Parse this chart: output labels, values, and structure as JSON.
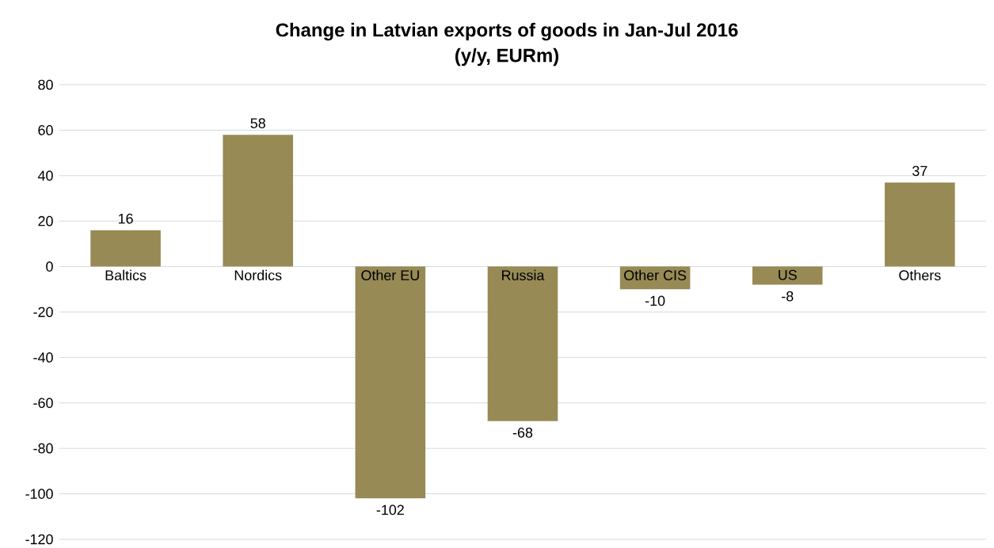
{
  "chart_data": {
    "type": "bar",
    "title": "Change in Latvian exports of goods in Jan-Jul 2016",
    "subtitle": "(y/y, EURm)",
    "categories": [
      "Baltics",
      "Nordics",
      "Other EU",
      "Russia",
      "Other CIS",
      "US",
      "Others"
    ],
    "values": [
      16,
      58,
      -102,
      -68,
      -10,
      -8,
      37
    ],
    "color": "#978a55",
    "ylim": [
      -120,
      80
    ],
    "yticks": [
      -120,
      -100,
      -80,
      -60,
      -40,
      -20,
      0,
      20,
      40,
      60,
      80
    ],
    "grid": "y",
    "data_labels": true
  }
}
